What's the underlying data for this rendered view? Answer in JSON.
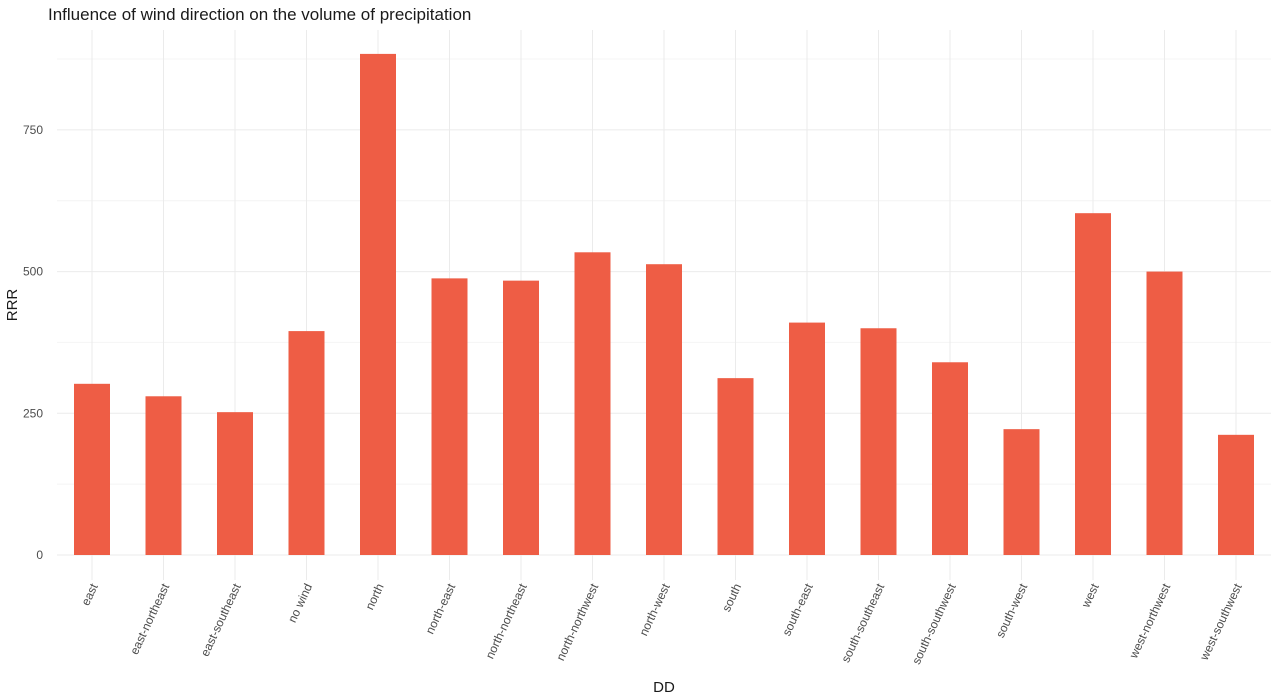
{
  "chart_data": {
    "type": "bar",
    "title": "Influence of wind direction on the volume of precipitation",
    "xlabel": "DD",
    "ylabel": "RRR",
    "categories": [
      "east",
      "east-northeast",
      "east-southeast",
      "no wind",
      "north",
      "north-east",
      "north-northeast",
      "north-northwest",
      "north-west",
      "south",
      "south-east",
      "south-southeast",
      "south-southwest",
      "south-west",
      "west",
      "west-northwest",
      "west-southwest"
    ],
    "values": [
      302,
      280,
      252,
      395,
      884,
      488,
      484,
      534,
      513,
      312,
      410,
      400,
      340,
      222,
      603,
      500,
      212
    ],
    "ylim": [
      0,
      930
    ],
    "yticks": [
      0,
      250,
      500,
      750
    ],
    "bar_color": "#EE5D45",
    "grid": true,
    "legend": "none"
  }
}
